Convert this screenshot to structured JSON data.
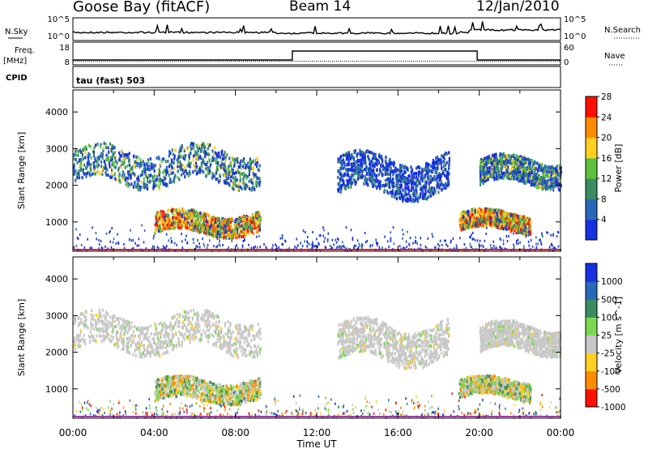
{
  "header": {
    "station": "Goose Bay (fitACF)",
    "beam": "Beam 14",
    "date": "12/Jan/2010"
  },
  "strips": {
    "nsky_label": "N.Sky",
    "nsky_ticks": [
      "10^5",
      "10^0"
    ],
    "nsearch_label": "N.Search",
    "nsearch_ticks": [
      "10^5",
      "10^0"
    ],
    "freq_label_1": "Freq.",
    "freq_label_2": "[MHz]",
    "freq_ticks": [
      "18",
      "8"
    ],
    "nave_label": "Nave",
    "nave_ticks": [
      "60",
      "0"
    ],
    "cpid_label": "CPID",
    "cpid_value": "tau (fast) 503"
  },
  "chart_data": [
    {
      "type": "heatmap",
      "name": "power-panel",
      "ylabel": "Slant Range [km]",
      "yticks": [
        1000,
        2000,
        3000,
        4000
      ],
      "ylim": [
        200,
        4600
      ],
      "xlim": [
        0,
        24
      ],
      "colorbar": {
        "label": "Power [dB]",
        "ticks": [
          "4",
          "8",
          "12",
          "16",
          "20",
          "24",
          "28"
        ],
        "colors": [
          "#1830e0",
          "#2868b8",
          "#3c8c60",
          "#5cc03c",
          "#ffd020",
          "#ff8c00",
          "#ff1000"
        ]
      },
      "regions": [
        {
          "t0": 0.0,
          "t1": 9.2,
          "r0": 1900,
          "r1": 3200,
          "level": "low-mid"
        },
        {
          "t0": 4.0,
          "t1": 9.2,
          "r0": 600,
          "r1": 1400,
          "level": "high"
        },
        {
          "t0": 13.0,
          "t1": 18.5,
          "r0": 1600,
          "r1": 3000,
          "level": "low"
        },
        {
          "t0": 19.0,
          "t1": 22.5,
          "r0": 700,
          "r1": 1400,
          "level": "high"
        },
        {
          "t0": 20.0,
          "t1": 24.0,
          "r0": 1900,
          "r1": 2900,
          "level": "low-mid"
        }
      ]
    },
    {
      "type": "heatmap",
      "name": "velocity-panel",
      "ylabel": "Slant Range [km]",
      "yticks": [
        1000,
        2000,
        3000,
        4000
      ],
      "ylim": [
        200,
        4600
      ],
      "xlim": [
        0,
        24
      ],
      "colorbar": {
        "label": "Velocity [m s^-1]",
        "ticks": [
          "1000",
          "500",
          "100",
          "25",
          "-25",
          "-100",
          "-500",
          "-1000"
        ],
        "colors": [
          "#1830e0",
          "#2868b8",
          "#3c8c60",
          "#7cd850",
          "#c8c8c8",
          "#ffd020",
          "#ff8c00",
          "#ff1000"
        ]
      },
      "regions": [
        {
          "t0": 0.0,
          "t1": 9.2,
          "r0": 1900,
          "r1": 3200,
          "level": "ground"
        },
        {
          "t0": 4.0,
          "t1": 9.2,
          "r0": 600,
          "r1": 1400,
          "level": "mixed"
        },
        {
          "t0": 13.0,
          "t1": 18.5,
          "r0": 1600,
          "r1": 3000,
          "level": "ground"
        },
        {
          "t0": 19.0,
          "t1": 22.5,
          "r0": 700,
          "r1": 1400,
          "level": "mixed"
        },
        {
          "t0": 20.0,
          "t1": 24.0,
          "r0": 1900,
          "r1": 2900,
          "level": "ground"
        }
      ]
    }
  ],
  "x_ticks": [
    "00:00",
    "04:00",
    "08:00",
    "12:00",
    "16:00",
    "20:00",
    "00:00"
  ],
  "x_label": "Time UT"
}
